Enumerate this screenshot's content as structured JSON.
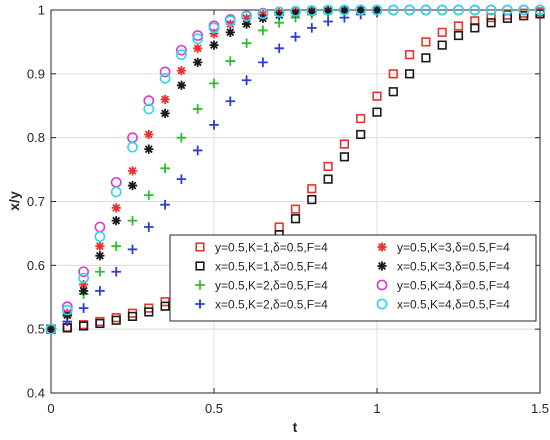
{
  "chart_data": {
    "type": "scatter",
    "title": "",
    "xlabel": "t",
    "ylabel": "x/y",
    "xlim": [
      0,
      1.5
    ],
    "ylim": [
      0.4,
      1.0
    ],
    "xticks": [
      "0",
      "0.5",
      "1",
      "1.5"
    ],
    "yticks": [
      "0.4",
      "0.5",
      "0.6",
      "0.7",
      "0.8",
      "0.9",
      "1"
    ],
    "grid": true,
    "legend_position": "bottom-right",
    "series": [
      {
        "name": "y=0.5,K=1,δ=0.5,F=4",
        "color": "#e8332e",
        "marker": "square",
        "x": [
          0,
          0.05,
          0.1,
          0.15,
          0.2,
          0.25,
          0.3,
          0.35,
          0.4,
          0.45,
          0.5,
          0.55,
          0.6,
          0.65,
          0.7,
          0.75,
          0.8,
          0.85,
          0.9,
          0.95,
          1.0,
          1.05,
          1.1,
          1.15,
          1.2,
          1.25,
          1.3,
          1.35,
          1.4,
          1.45,
          1.5
        ],
        "y": [
          0.5,
          0.503,
          0.507,
          0.512,
          0.518,
          0.525,
          0.533,
          0.543,
          0.555,
          0.568,
          0.583,
          0.6,
          0.618,
          0.638,
          0.66,
          0.688,
          0.72,
          0.755,
          0.79,
          0.83,
          0.865,
          0.9,
          0.93,
          0.95,
          0.965,
          0.975,
          0.983,
          0.988,
          0.992,
          0.995,
          0.997
        ]
      },
      {
        "name": "x=0.5,K=1,δ=0.5,F=4",
        "color": "#1a1a1a",
        "marker": "square",
        "x": [
          0,
          0.05,
          0.1,
          0.15,
          0.2,
          0.25,
          0.3,
          0.35,
          0.4,
          0.45,
          0.5,
          0.55,
          0.6,
          0.65,
          0.7,
          0.75,
          0.8,
          0.85,
          0.9,
          0.95,
          1.0,
          1.05,
          1.1,
          1.15,
          1.2,
          1.25,
          1.3,
          1.35,
          1.4,
          1.45,
          1.5
        ],
        "y": [
          0.5,
          0.502,
          0.505,
          0.509,
          0.514,
          0.52,
          0.527,
          0.536,
          0.547,
          0.559,
          0.573,
          0.589,
          0.607,
          0.627,
          0.648,
          0.673,
          0.703,
          0.735,
          0.77,
          0.805,
          0.84,
          0.872,
          0.9,
          0.925,
          0.945,
          0.96,
          0.972,
          0.98,
          0.987,
          0.991,
          0.994
        ]
      },
      {
        "name": "y=0.5,K=2,δ=0.5,F=4",
        "color": "#2bbf2b",
        "marker": "plus",
        "x": [
          0,
          0.05,
          0.1,
          0.15,
          0.2,
          0.25,
          0.3,
          0.35,
          0.4,
          0.45,
          0.5,
          0.55,
          0.6,
          0.65,
          0.7,
          0.75,
          0.8,
          0.85,
          0.9,
          0.95,
          1.0
        ],
        "y": [
          0.5,
          0.52,
          0.555,
          0.59,
          0.63,
          0.67,
          0.71,
          0.752,
          0.8,
          0.845,
          0.885,
          0.92,
          0.948,
          0.968,
          0.98,
          0.988,
          0.993,
          0.996,
          0.998,
          0.999,
          1.0
        ]
      },
      {
        "name": "x=0.5,K=2,δ=0.5,F=4",
        "color": "#2a3bd6",
        "marker": "plus",
        "x": [
          0,
          0.05,
          0.1,
          0.15,
          0.2,
          0.25,
          0.3,
          0.35,
          0.4,
          0.45,
          0.5,
          0.55,
          0.6,
          0.65,
          0.7,
          0.75,
          0.8,
          0.85,
          0.9,
          0.95,
          1.0
        ],
        "y": [
          0.5,
          0.512,
          0.533,
          0.56,
          0.59,
          0.625,
          0.66,
          0.695,
          0.735,
          0.78,
          0.82,
          0.857,
          0.89,
          0.918,
          0.94,
          0.958,
          0.972,
          0.982,
          0.988,
          0.993,
          0.996
        ]
      },
      {
        "name": "y=0.5,K=3,δ=0.5,F=4",
        "color": "#e8332e",
        "marker": "asterisk",
        "x": [
          0,
          0.05,
          0.1,
          0.15,
          0.2,
          0.25,
          0.3,
          0.35,
          0.4,
          0.45,
          0.5,
          0.55,
          0.6,
          0.65,
          0.7,
          0.75,
          0.8,
          0.85,
          0.9,
          0.95,
          1.0
        ],
        "y": [
          0.5,
          0.525,
          0.57,
          0.63,
          0.69,
          0.748,
          0.805,
          0.86,
          0.905,
          0.94,
          0.963,
          0.978,
          0.987,
          0.993,
          0.996,
          0.998,
          0.999,
          1.0,
          1.0,
          1.0,
          1.0
        ]
      },
      {
        "name": "x=0.5,K=3,δ=0.5,F=4",
        "color": "#1a1a1a",
        "marker": "asterisk",
        "x": [
          0,
          0.05,
          0.1,
          0.15,
          0.2,
          0.25,
          0.3,
          0.35,
          0.4,
          0.45,
          0.5,
          0.55,
          0.6,
          0.65,
          0.7,
          0.75,
          0.8,
          0.85,
          0.9,
          0.95,
          1.0
        ],
        "y": [
          0.5,
          0.522,
          0.56,
          0.615,
          0.67,
          0.725,
          0.782,
          0.838,
          0.882,
          0.918,
          0.945,
          0.965,
          0.978,
          0.987,
          0.992,
          0.995,
          0.997,
          0.998,
          0.999,
          1.0,
          1.0
        ]
      },
      {
        "name": "y=0.5,K=4,δ=0.5,F=4",
        "color": "#d63bd6",
        "marker": "circle",
        "x": [
          0,
          0.05,
          0.1,
          0.15,
          0.2,
          0.25,
          0.3,
          0.35,
          0.4,
          0.45,
          0.5,
          0.55,
          0.6,
          0.65,
          0.7,
          0.75,
          0.8,
          0.85,
          0.9,
          0.95,
          1.0,
          1.05,
          1.1,
          1.15,
          1.2,
          1.25,
          1.3,
          1.35,
          1.4,
          1.45,
          1.5
        ],
        "y": [
          0.5,
          0.535,
          0.59,
          0.66,
          0.73,
          0.8,
          0.858,
          0.903,
          0.937,
          0.96,
          0.975,
          0.985,
          0.991,
          0.995,
          0.997,
          0.998,
          0.999,
          1.0,
          1.0,
          1.0,
          1.0,
          1.0,
          1.0,
          1.0,
          1.0,
          1.0,
          1.0,
          1.0,
          1.0,
          1.0,
          1.0
        ]
      },
      {
        "name": "x=0.5,K=4,δ=0.5,F=4",
        "color": "#2fd8e8",
        "marker": "circle",
        "x": [
          0,
          0.05,
          0.1,
          0.15,
          0.2,
          0.25,
          0.3,
          0.35,
          0.4,
          0.45,
          0.5,
          0.55,
          0.6,
          0.65,
          0.7,
          0.75,
          0.8,
          0.85,
          0.9,
          0.95,
          1.0,
          1.05,
          1.1,
          1.15,
          1.2,
          1.25,
          1.3,
          1.35,
          1.4,
          1.45,
          1.5
        ],
        "y": [
          0.5,
          0.53,
          0.58,
          0.645,
          0.715,
          0.785,
          0.845,
          0.893,
          0.93,
          0.955,
          0.972,
          0.983,
          0.99,
          0.994,
          0.997,
          0.998,
          0.999,
          1.0,
          1.0,
          1.0,
          1.0,
          1.0,
          1.0,
          1.0,
          1.0,
          1.0,
          1.0,
          1.0,
          1.0,
          1.0,
          1.0
        ]
      }
    ]
  }
}
